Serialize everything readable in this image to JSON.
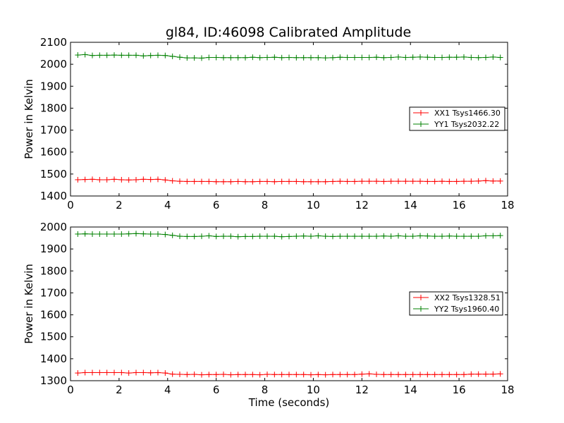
{
  "title": "gl84, ID:46098 Calibrated Amplitude",
  "chart_data": [
    {
      "type": "line",
      "xlabel": "",
      "ylabel": "Power in Kelvin",
      "xlim": [
        0,
        18
      ],
      "ylim": [
        1400,
        2100
      ],
      "xticks": [
        "0",
        "2",
        "4",
        "6",
        "8",
        "10",
        "12",
        "14",
        "16",
        "18"
      ],
      "yticks": [
        "1400",
        "1500",
        "1600",
        "1700",
        "1800",
        "1900",
        "2000",
        "2100"
      ],
      "grid": false,
      "legend_position": "center-right",
      "x": [
        0.3,
        0.6,
        0.9,
        1.2,
        1.5,
        1.8,
        2.1,
        2.4,
        2.7,
        3.0,
        3.3,
        3.6,
        3.9,
        4.2,
        4.5,
        4.8,
        5.1,
        5.4,
        5.7,
        6.0,
        6.3,
        6.6,
        6.9,
        7.2,
        7.5,
        7.8,
        8.1,
        8.4,
        8.7,
        9.0,
        9.3,
        9.6,
        9.9,
        10.2,
        10.5,
        10.8,
        11.1,
        11.4,
        11.7,
        12.0,
        12.3,
        12.6,
        12.9,
        13.2,
        13.5,
        13.8,
        14.1,
        14.4,
        14.7,
        15.0,
        15.3,
        15.6,
        15.9,
        16.2,
        16.5,
        16.8,
        17.1,
        17.4,
        17.7
      ],
      "series": [
        {
          "name": "XX1 Tsys1466.30",
          "color": "#ff0000",
          "values": [
            1474,
            1475,
            1476,
            1474,
            1474,
            1476,
            1474,
            1473,
            1474,
            1476,
            1475,
            1476,
            1473,
            1469,
            1467,
            1466,
            1466,
            1466,
            1466,
            1465,
            1465,
            1465,
            1466,
            1465,
            1465,
            1466,
            1466,
            1465,
            1466,
            1466,
            1466,
            1465,
            1465,
            1465,
            1465,
            1466,
            1467,
            1466,
            1466,
            1467,
            1467,
            1467,
            1466,
            1467,
            1467,
            1467,
            1467,
            1467,
            1466,
            1466,
            1467,
            1466,
            1466,
            1467,
            1467,
            1468,
            1470,
            1468,
            1468
          ]
        },
        {
          "name": "YY1 Tsys2032.22",
          "color": "#008000",
          "values": [
            2042,
            2044,
            2040,
            2041,
            2041,
            2042,
            2041,
            2041,
            2041,
            2038,
            2040,
            2041,
            2040,
            2036,
            2032,
            2029,
            2029,
            2028,
            2031,
            2031,
            2030,
            2030,
            2030,
            2030,
            2032,
            2030,
            2031,
            2032,
            2030,
            2031,
            2030,
            2030,
            2030,
            2030,
            2029,
            2030,
            2032,
            2031,
            2031,
            2031,
            2031,
            2032,
            2030,
            2031,
            2033,
            2031,
            2032,
            2033,
            2032,
            2031,
            2031,
            2032,
            2032,
            2033,
            2031,
            2030,
            2031,
            2033,
            2031
          ]
        }
      ]
    },
    {
      "type": "line",
      "xlabel": "Time (seconds)",
      "ylabel": "Power in Kelvin",
      "xlim": [
        0,
        18
      ],
      "ylim": [
        1300,
        2000
      ],
      "xticks": [
        "0",
        "2",
        "4",
        "6",
        "8",
        "10",
        "12",
        "14",
        "16",
        "18"
      ],
      "yticks": [
        "1300",
        "1400",
        "1500",
        "1600",
        "1700",
        "1800",
        "1900",
        "2000"
      ],
      "grid": false,
      "legend_position": "center-right",
      "x": [
        0.3,
        0.6,
        0.9,
        1.2,
        1.5,
        1.8,
        2.1,
        2.4,
        2.7,
        3.0,
        3.3,
        3.6,
        3.9,
        4.2,
        4.5,
        4.8,
        5.1,
        5.4,
        5.7,
        6.0,
        6.3,
        6.6,
        6.9,
        7.2,
        7.5,
        7.8,
        8.1,
        8.4,
        8.7,
        9.0,
        9.3,
        9.6,
        9.9,
        10.2,
        10.5,
        10.8,
        11.1,
        11.4,
        11.7,
        12.0,
        12.3,
        12.6,
        12.9,
        13.2,
        13.5,
        13.8,
        14.1,
        14.4,
        14.7,
        15.0,
        15.3,
        15.6,
        15.9,
        16.2,
        16.5,
        16.8,
        17.1,
        17.4,
        17.7
      ],
      "series": [
        {
          "name": "XX2 Tsys1328.51",
          "color": "#ff0000",
          "values": [
            1335,
            1337,
            1337,
            1337,
            1337,
            1337,
            1337,
            1335,
            1337,
            1337,
            1336,
            1337,
            1335,
            1330,
            1329,
            1328,
            1329,
            1327,
            1328,
            1328,
            1329,
            1327,
            1328,
            1328,
            1328,
            1327,
            1329,
            1328,
            1328,
            1328,
            1328,
            1328,
            1327,
            1328,
            1327,
            1328,
            1328,
            1328,
            1328,
            1330,
            1331,
            1329,
            1328,
            1328,
            1328,
            1328,
            1328,
            1328,
            1328,
            1328,
            1328,
            1328,
            1328,
            1328,
            1330,
            1330,
            1330,
            1330,
            1331
          ]
        },
        {
          "name": "YY2 Tsys1960.40",
          "color": "#008000",
          "values": [
            1968,
            1969,
            1968,
            1968,
            1968,
            1968,
            1968,
            1969,
            1970,
            1969,
            1968,
            1968,
            1966,
            1962,
            1958,
            1957,
            1957,
            1958,
            1960,
            1957,
            1958,
            1958,
            1956,
            1957,
            1957,
            1958,
            1958,
            1958,
            1956,
            1957,
            1958,
            1959,
            1958,
            1960,
            1958,
            1957,
            1958,
            1958,
            1958,
            1958,
            1958,
            1958,
            1959,
            1958,
            1960,
            1958,
            1958,
            1960,
            1959,
            1958,
            1958,
            1959,
            1958,
            1958,
            1958,
            1958,
            1960,
            1960,
            1961
          ]
        }
      ]
    }
  ]
}
